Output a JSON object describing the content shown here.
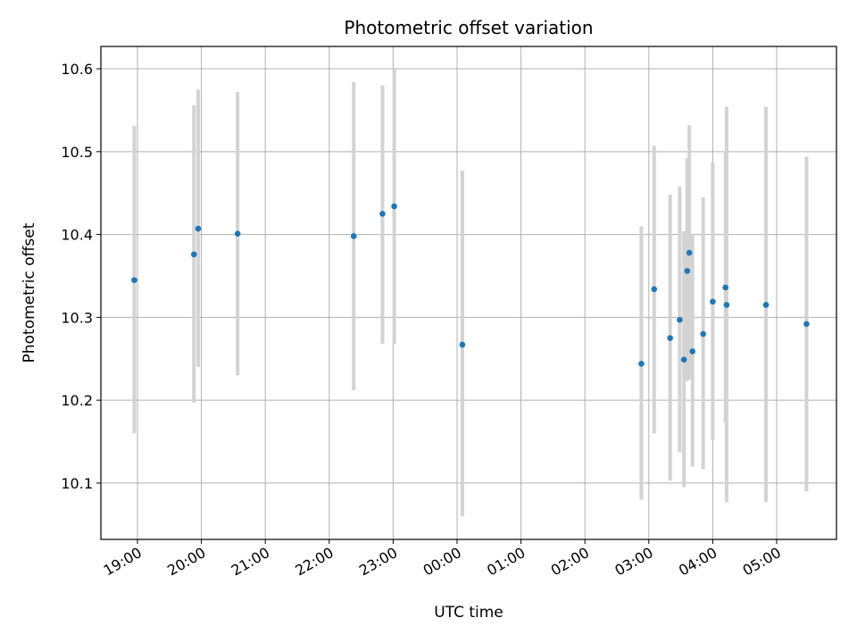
{
  "chart_data": {
    "type": "scatter",
    "title": "Photometric offset variation",
    "xlabel": "UTC time",
    "ylabel": "Photometric offset",
    "x_tick_labels": [
      "19:00",
      "20:00",
      "21:00",
      "22:00",
      "23:00",
      "00:00",
      "01:00",
      "02:00",
      "03:00",
      "04:00",
      "05:00"
    ],
    "y_tick_labels": [
      "10.1",
      "10.2",
      "10.3",
      "10.4",
      "10.5",
      "10.6"
    ],
    "ylim": [
      10.032,
      10.627
    ],
    "grid": true,
    "colors": {
      "points": "#1f77b4",
      "error_bars": "#d3d3d3",
      "grid": "#b0b0b0"
    },
    "series": [
      {
        "x": [
          "18:57",
          "19:53",
          "19:57",
          "20:34",
          "22:23",
          "22:50",
          "23:01",
          "00:05",
          "02:53",
          "03:05",
          "03:20",
          "03:29",
          "03:33",
          "03:36",
          "03:38",
          "03:41",
          "03:51",
          "04:00",
          "04:12",
          "04:13",
          "04:50",
          "05:28"
        ],
        "y": [
          10.345,
          10.376,
          10.407,
          10.401,
          10.398,
          10.425,
          10.434,
          10.267,
          10.244,
          10.334,
          10.275,
          10.297,
          10.249,
          10.356,
          10.378,
          10.259,
          10.28,
          10.319,
          10.336,
          10.315,
          10.315,
          10.292
        ],
        "yerr_low": [
          10.16,
          10.197,
          10.24,
          10.23,
          10.212,
          10.268,
          10.268,
          10.06,
          10.08,
          10.16,
          10.103,
          10.137,
          10.095,
          10.223,
          10.225,
          10.12,
          10.117,
          10.152,
          10.173,
          10.077,
          10.077,
          10.09
        ],
        "yerr_high": [
          10.531,
          10.556,
          10.575,
          10.572,
          10.584,
          10.58,
          10.6,
          10.477,
          10.41,
          10.507,
          10.448,
          10.458,
          10.404,
          10.492,
          10.532,
          10.399,
          10.445,
          10.487,
          10.5,
          10.554,
          10.554,
          10.494
        ]
      }
    ]
  }
}
